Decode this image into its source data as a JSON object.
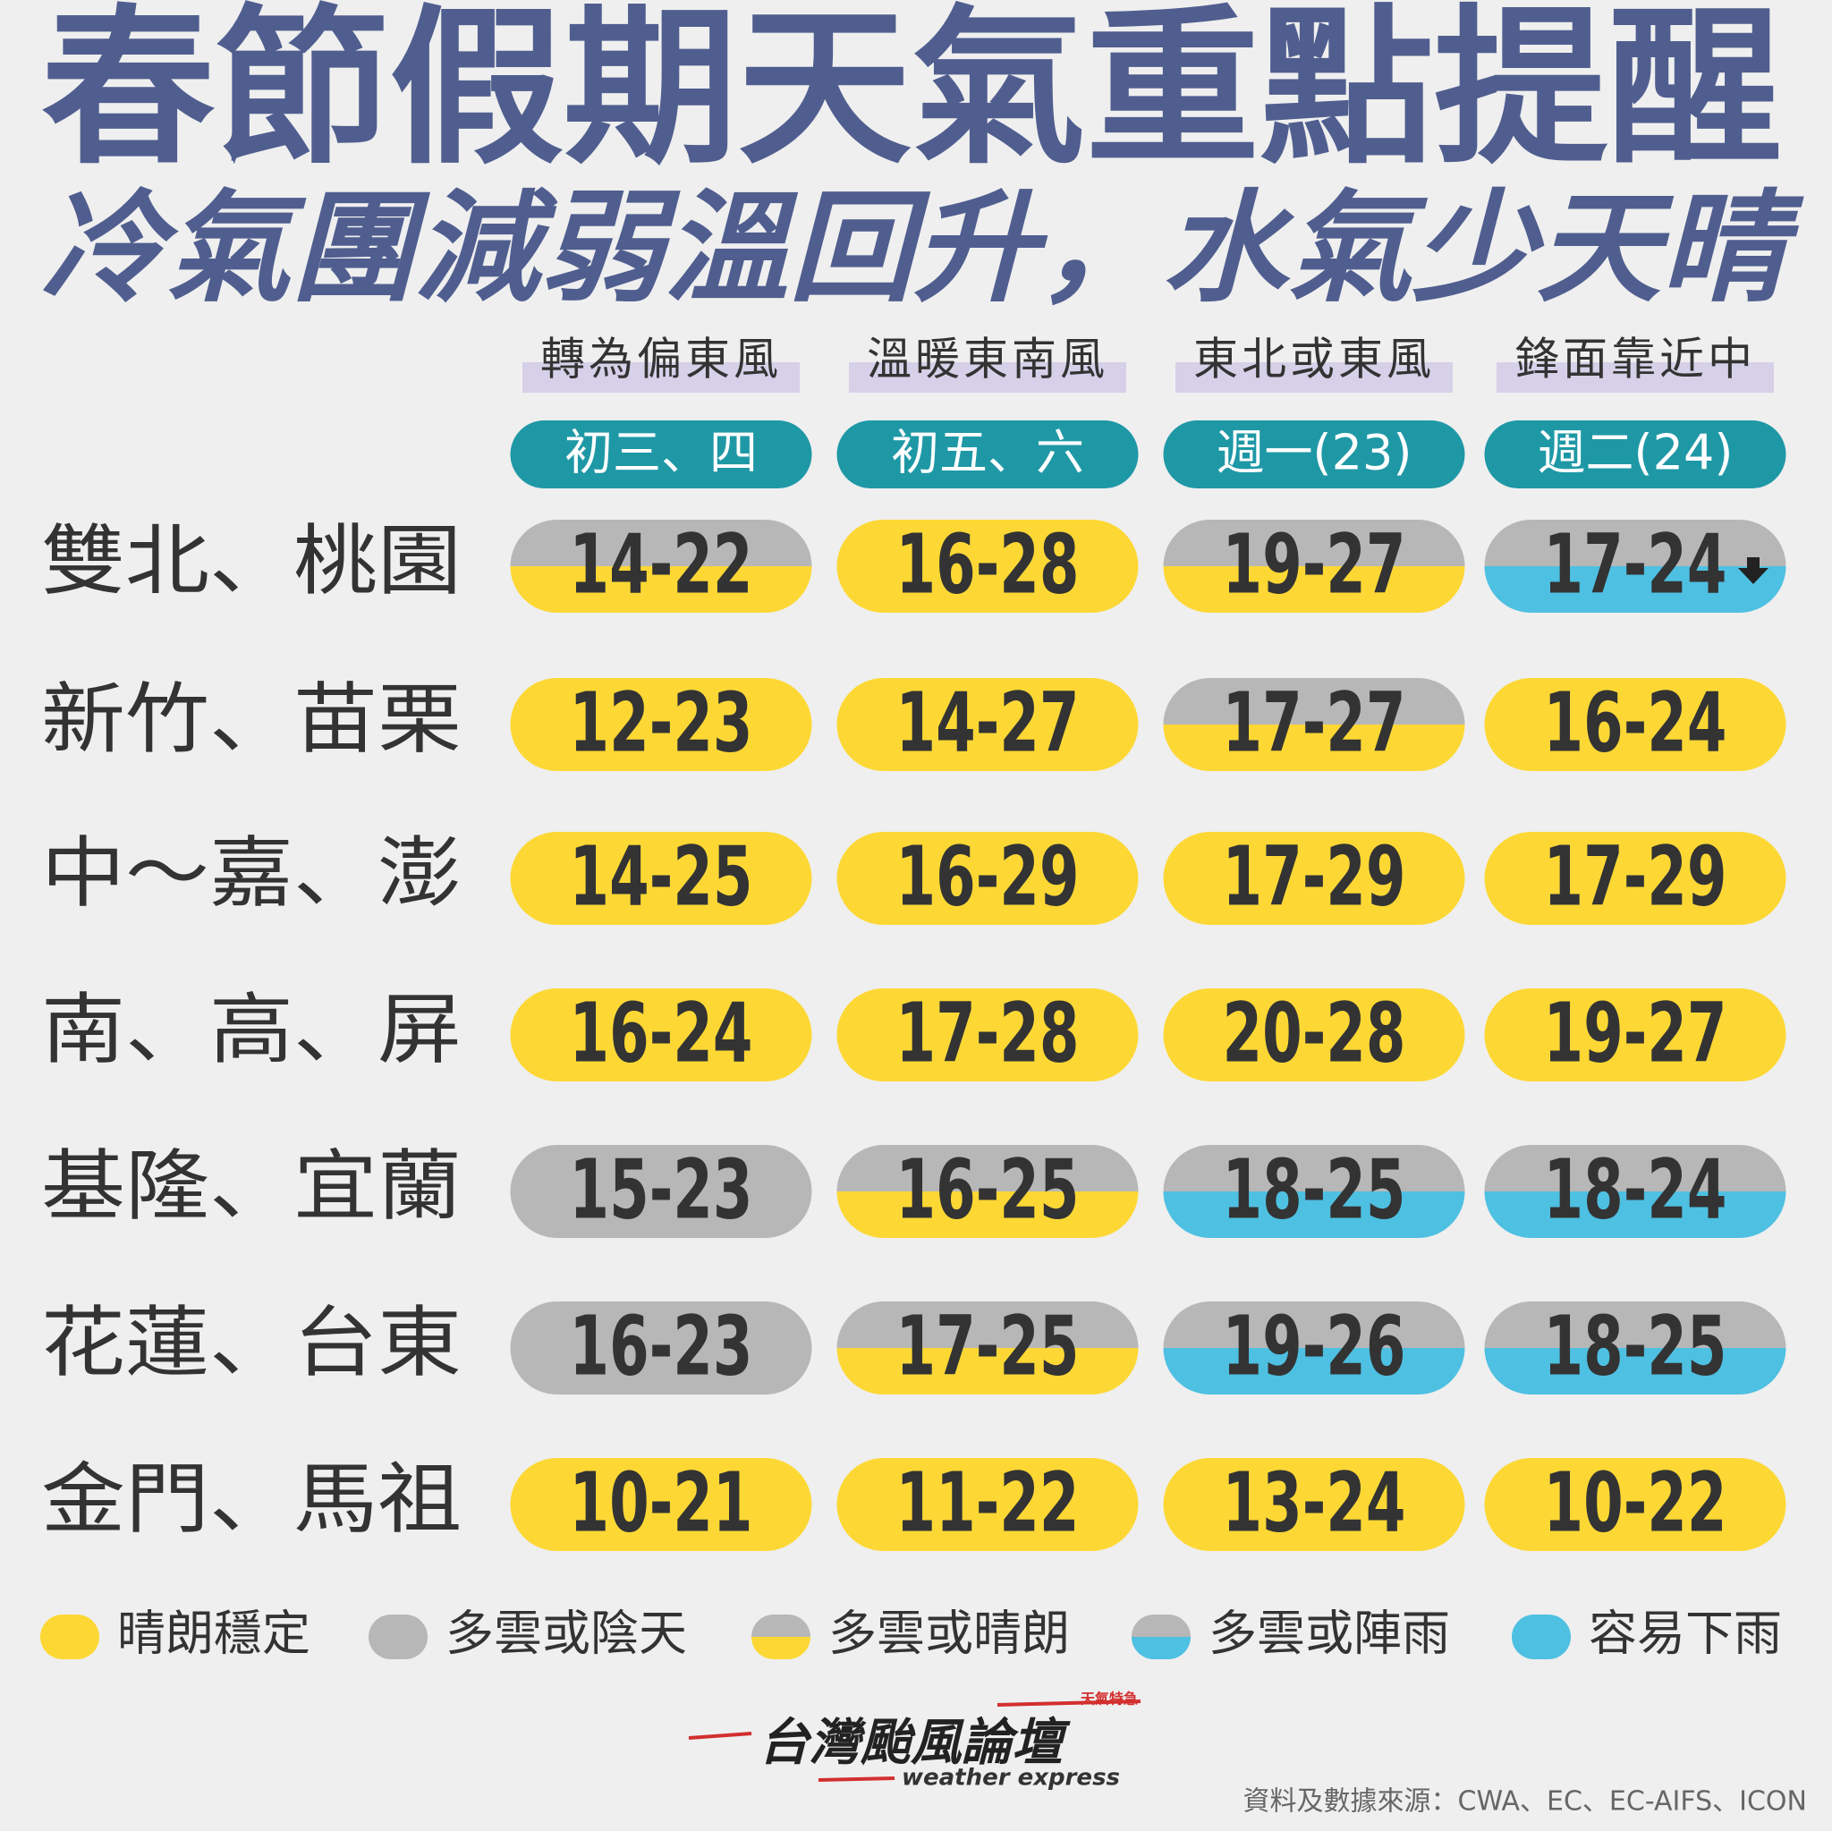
{
  "title": "春節假期天氣重點提醒",
  "subtitle": "冷氣團減弱溫回升，水氣少天晴",
  "columns": [
    {
      "wind": "轉為偏東風",
      "date": "初三、四"
    },
    {
      "wind": "溫暖東南風",
      "date": "初五、六"
    },
    {
      "wind": "東北或東風",
      "date": "週一(23)"
    },
    {
      "wind": "鋒面靠近中",
      "date": "週二(24)"
    }
  ],
  "legend": [
    {
      "label": "晴朗穩定",
      "top": "#fdd835",
      "bottom": "#fdd835"
    },
    {
      "label": "多雲或陰天",
      "top": "#b7b7b7",
      "bottom": "#b7b7b7"
    },
    {
      "label": "多雲或晴朗",
      "top": "#b7b7b7",
      "bottom": "#fdd835"
    },
    {
      "label": "多雲或陣雨",
      "top": "#b7b7b7",
      "bottom": "#4ec0e2"
    },
    {
      "label": "容易下雨",
      "top": "#4ec0e2",
      "bottom": "#4ec0e2"
    }
  ],
  "rows": [
    {
      "region": "雙北、桃園",
      "cells": [
        {
          "text": "14-22",
          "legend": 2
        },
        {
          "text": "16-28",
          "legend": 0
        },
        {
          "text": "19-27",
          "legend": 2
        },
        {
          "text": "17-24",
          "legend": 3,
          "arrow_down": true
        }
      ]
    },
    {
      "region": "新竹、苗栗",
      "cells": [
        {
          "text": "12-23",
          "legend": 0
        },
        {
          "text": "14-27",
          "legend": 0
        },
        {
          "text": "17-27",
          "legend": 2
        },
        {
          "text": "16-24",
          "legend": 0
        }
      ]
    },
    {
      "region": "中～嘉、澎",
      "cells": [
        {
          "text": "14-25",
          "legend": 0
        },
        {
          "text": "16-29",
          "legend": 0
        },
        {
          "text": "17-29",
          "legend": 0
        },
        {
          "text": "17-29",
          "legend": 0
        }
      ]
    },
    {
      "region": "南、高、屏",
      "cells": [
        {
          "text": "16-24",
          "legend": 0
        },
        {
          "text": "17-28",
          "legend": 0
        },
        {
          "text": "20-28",
          "legend": 0
        },
        {
          "text": "19-27",
          "legend": 0
        }
      ]
    },
    {
      "region": "基隆、宜蘭",
      "cells": [
        {
          "text": "15-23",
          "legend": 1
        },
        {
          "text": "16-25",
          "legend": 2
        },
        {
          "text": "18-25",
          "legend": 3
        },
        {
          "text": "18-24",
          "legend": 3
        }
      ]
    },
    {
      "region": "花蓮、台東",
      "cells": [
        {
          "text": "16-23",
          "legend": 1
        },
        {
          "text": "17-25",
          "legend": 2
        },
        {
          "text": "19-26",
          "legend": 3
        },
        {
          "text": "18-25",
          "legend": 3
        }
      ]
    },
    {
      "region": "金門、馬祖",
      "cells": [
        {
          "text": "10-21",
          "legend": 0
        },
        {
          "text": "11-22",
          "legend": 0
        },
        {
          "text": "13-24",
          "legend": 0
        },
        {
          "text": "10-22",
          "legend": 0
        }
      ]
    }
  ],
  "footer": {
    "logo": "台灣颱風論壇",
    "logo_sub": "weather express",
    "badge": "天氣特急",
    "source": "資料及數據來源：CWA、EC、EC-AIFS、ICON"
  }
}
